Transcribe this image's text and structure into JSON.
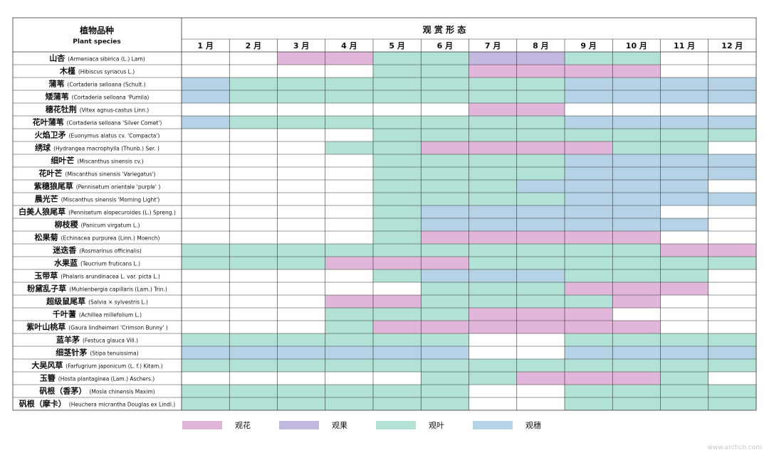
{
  "chart_data": {
    "type": "heatmap",
    "header": {
      "species_cn": "植物品种",
      "species_en": "Plant species",
      "form_title": "观 赏 形 态"
    },
    "months": [
      "1 月",
      "2 月",
      "3 月",
      "4 月",
      "5 月",
      "6 月",
      "7 月",
      "8 月",
      "9 月",
      "10 月",
      "11 月",
      "12 月"
    ],
    "legend": [
      {
        "key": "F",
        "label": "观花",
        "color": "#e2b6da"
      },
      {
        "key": "R",
        "label": "观果",
        "color": "#c3b8e0"
      },
      {
        "key": "L",
        "label": "观叶",
        "color": "#b2e2d6"
      },
      {
        "key": "S",
        "label": "观穗",
        "color": "#b6d2e6"
      }
    ],
    "rows": [
      {
        "cn": "山杏",
        "latin": "(Armeniaca sibirica (L.) Lam)",
        "cells": [
          "",
          "",
          "F",
          "F",
          "L",
          "L",
          "R",
          "R",
          "L",
          "L",
          "",
          ""
        ]
      },
      {
        "cn": "木槿",
        "latin": "(Hibiscus syriacus L.)",
        "cells": [
          "",
          "",
          "",
          "",
          "L",
          "L",
          "F",
          "F",
          "F",
          "F",
          "",
          ""
        ]
      },
      {
        "cn": "蒲苇",
        "latin": "(Cortaderia selloana (Schult.)",
        "cells": [
          "S",
          "L",
          "L",
          "L",
          "L",
          "L",
          "L",
          "L",
          "S",
          "S",
          "S",
          "S"
        ]
      },
      {
        "cn": "矮蒲苇",
        "latin": "(Cortaderia selloana 'Pumila)",
        "cells": [
          "S",
          "L",
          "L",
          "L",
          "L",
          "L",
          "L",
          "L",
          "S",
          "S",
          "S",
          "S"
        ]
      },
      {
        "cn": "穗花牡荆",
        "latin": "(Vitex agnus-castus Linn.)",
        "cells": [
          "",
          "",
          "",
          "",
          "",
          "",
          "F",
          "F",
          "",
          "",
          "",
          ""
        ]
      },
      {
        "cn": "花叶蒲苇",
        "latin": "(Cortaderia selloana 'Silver Comet')",
        "cells": [
          "S",
          "L",
          "L",
          "L",
          "L",
          "L",
          "L",
          "L",
          "S",
          "S",
          "S",
          "S"
        ]
      },
      {
        "cn": "火焰卫矛",
        "latin": "(Euonymus alatus cv. 'Compacta')",
        "cells": [
          "",
          "",
          "",
          "",
          "L",
          "L",
          "L",
          "L",
          "L",
          "L",
          "L",
          "L"
        ]
      },
      {
        "cn": "绣球",
        "latin": "(Hydrangea macrophylla (Thunb.) Ser. )",
        "cells": [
          "",
          "",
          "",
          "L",
          "L",
          "F",
          "F",
          "F",
          "F",
          "L",
          "L",
          ""
        ]
      },
      {
        "cn": "细叶芒",
        "latin": "(Miscanthus sinensis cv.)",
        "cells": [
          "",
          "",
          "",
          "",
          "L",
          "L",
          "L",
          "L",
          "S",
          "S",
          "S",
          "S"
        ]
      },
      {
        "cn": "花叶芒",
        "latin": "(Miscanthus sinensis 'Variegatus')",
        "cells": [
          "",
          "",
          "",
          "",
          "L",
          "L",
          "L",
          "L",
          "S",
          "S",
          "S",
          "S"
        ]
      },
      {
        "cn": "紫穗狼尾草",
        "latin": "(Pennisetum orientale 'purple' )",
        "cells": [
          "",
          "",
          "",
          "",
          "L",
          "L",
          "L",
          "S",
          "S",
          "S",
          "S",
          ""
        ]
      },
      {
        "cn": "晨光芒",
        "latin": "(Miscanthus sinensis 'Morning Light')",
        "cells": [
          "",
          "",
          "",
          "",
          "L",
          "L",
          "L",
          "L",
          "S",
          "S",
          "S",
          "S"
        ]
      },
      {
        "cn": "白美人狼尾草",
        "latin": "(Pennisetum alopecuroides (L.) Spreng.)",
        "cells": [
          "",
          "",
          "",
          "",
          "L",
          "S",
          "S",
          "S",
          "S",
          "S",
          "",
          ""
        ]
      },
      {
        "cn": "柳枝稷",
        "latin": "(Panicum virgatum L.)",
        "cells": [
          "",
          "",
          "",
          "",
          "L",
          "S",
          "S",
          "S",
          "S",
          "S",
          "S",
          ""
        ]
      },
      {
        "cn": "松果菊",
        "latin": "(Echinacea purpurea (Linn.) Moench)",
        "cells": [
          "",
          "",
          "",
          "",
          "L",
          "F",
          "F",
          "F",
          "F",
          "F",
          "",
          ""
        ]
      },
      {
        "cn": "迷迭香",
        "latin": "(Rosmarinus officinalis)",
        "cells": [
          "L",
          "L",
          "L",
          "L",
          "L",
          "L",
          "L",
          "L",
          "L",
          "L",
          "F",
          "F"
        ]
      },
      {
        "cn": "水果蓝",
        "latin": "(Teucrium fruticans L.)",
        "cells": [
          "L",
          "L",
          "L",
          "F",
          "F",
          "F",
          "L",
          "L",
          "L",
          "L",
          "L",
          "L"
        ]
      },
      {
        "cn": "玉带草",
        "latin": "(Phalaris arundinacea L. var. picta L.)",
        "cells": [
          "",
          "",
          "",
          "",
          "L",
          "S",
          "S",
          "S",
          "L",
          "L",
          "L",
          ""
        ]
      },
      {
        "cn": "粉黛乱子草",
        "latin": "(Muhlenbergia capillaris (Lam.) Trin.)",
        "cells": [
          "",
          "",
          "",
          "",
          "",
          "L",
          "L",
          "L",
          "F",
          "F",
          "F",
          ""
        ]
      },
      {
        "cn": "超级鼠尾草",
        "latin": "(Salvia × sylvestris L.)",
        "cells": [
          "",
          "",
          "",
          "F",
          "F",
          "L",
          "L",
          "L",
          "L",
          "F",
          "",
          ""
        ]
      },
      {
        "cn": "千叶蓍",
        "latin": "(Achillea millefolium L.)",
        "cells": [
          "",
          "",
          "",
          "L",
          "L",
          "L",
          "F",
          "F",
          "F",
          "",
          "",
          ""
        ]
      },
      {
        "cn": "紫叶山桃草",
        "latin": "(Gaura lindheimeri 'Crimson Bunny' )",
        "cells": [
          "",
          "",
          "",
          "L",
          "F",
          "F",
          "F",
          "F",
          "F",
          "F",
          "",
          ""
        ]
      },
      {
        "cn": "蓝羊茅",
        "latin": "(Festuca glauca Vill.)",
        "cells": [
          "L",
          "L",
          "L",
          "L",
          "L",
          "L",
          "",
          "",
          "L",
          "L",
          "L",
          "L"
        ]
      },
      {
        "cn": "细茎针茅",
        "latin": "(Stipa tenuissima)",
        "cells": [
          "S",
          "S",
          "S",
          "S",
          "S",
          "S",
          "",
          "",
          "S",
          "S",
          "S",
          "S"
        ]
      },
      {
        "cn": "大吴风草",
        "latin": "(Farfugrium japonicum (L. f.) Kitam.)",
        "cells": [
          "L",
          "L",
          "L",
          "L",
          "L",
          "L",
          "L",
          "L",
          "L",
          "L",
          "L",
          "L"
        ]
      },
      {
        "cn": "玉簪",
        "latin": "(Hosta plantaginea (Lam.) Aschers.)",
        "cells": [
          "",
          "",
          "",
          "",
          "",
          "L",
          "L",
          "F",
          "F",
          "F",
          "L",
          ""
        ]
      },
      {
        "cn": "矾根（香茅）",
        "latin": "(Mosla chinensis Maxim)",
        "cells": [
          "L",
          "L",
          "L",
          "L",
          "L",
          "L",
          "",
          "",
          "L",
          "L",
          "L",
          "L"
        ]
      },
      {
        "cn": "矾根（摩卡）",
        "latin": "(Heuchera micrantha Douglas ex Lindl.)",
        "cells": [
          "L",
          "L",
          "L",
          "L",
          "L",
          "L",
          "",
          "",
          "L",
          "L",
          "L",
          "L"
        ]
      }
    ],
    "watermark": "www.archcn.com"
  }
}
